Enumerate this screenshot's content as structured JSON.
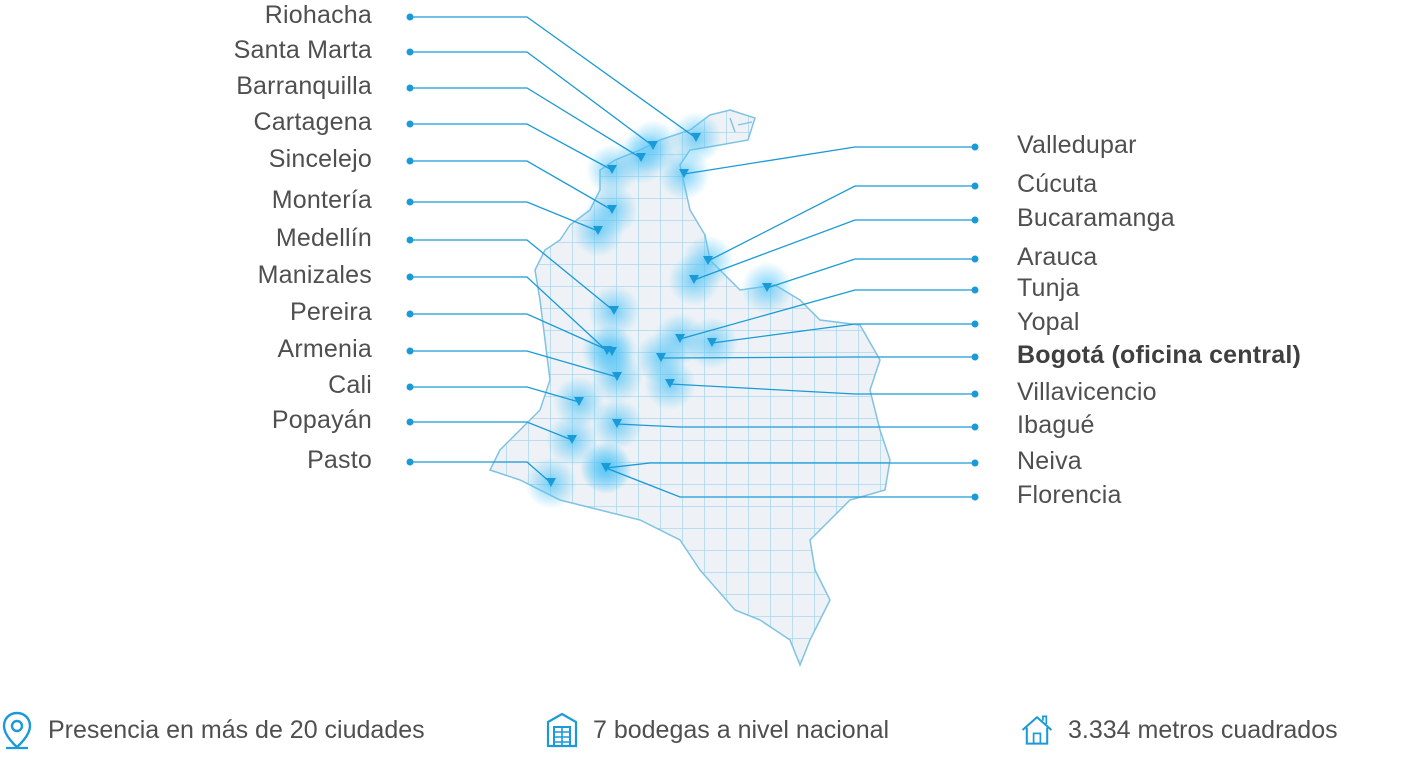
{
  "colors": {
    "accent": "#1a9ad6",
    "map_fill": "#eef2f6",
    "grid": "#8fcbe8",
    "glow": "#4fc3f7",
    "text": "#4f4f4f"
  },
  "cities_left": [
    {
      "name": "Riohacha"
    },
    {
      "name": "Santa Marta"
    },
    {
      "name": "Barranquilla"
    },
    {
      "name": "Cartagena"
    },
    {
      "name": "Sincelejo"
    },
    {
      "name": "Montería"
    },
    {
      "name": "Medellín"
    },
    {
      "name": "Manizales"
    },
    {
      "name": "Pereira"
    },
    {
      "name": "Armenia"
    },
    {
      "name": "Cali"
    },
    {
      "name": "Popayán"
    },
    {
      "name": "Pasto"
    }
  ],
  "cities_right": [
    {
      "name": "Valledupar"
    },
    {
      "name": "Cúcuta"
    },
    {
      "name": "Bucaramanga"
    },
    {
      "name": "Arauca"
    },
    {
      "name": "Tunja"
    },
    {
      "name": "Yopal"
    },
    {
      "name": "Bogotá (oficina central)",
      "headquarters": true
    },
    {
      "name": "Villavicencio"
    },
    {
      "name": "Ibagué"
    },
    {
      "name": "Neiva"
    },
    {
      "name": "Florencia"
    }
  ],
  "stats": [
    {
      "icon": "location-pin-icon",
      "text": "Presencia en más de 20 ciudades"
    },
    {
      "icon": "warehouse-icon",
      "text": "7 bodegas a nivel nacional"
    },
    {
      "icon": "house-icon",
      "text": "3.334 metros cuadrados"
    }
  ]
}
